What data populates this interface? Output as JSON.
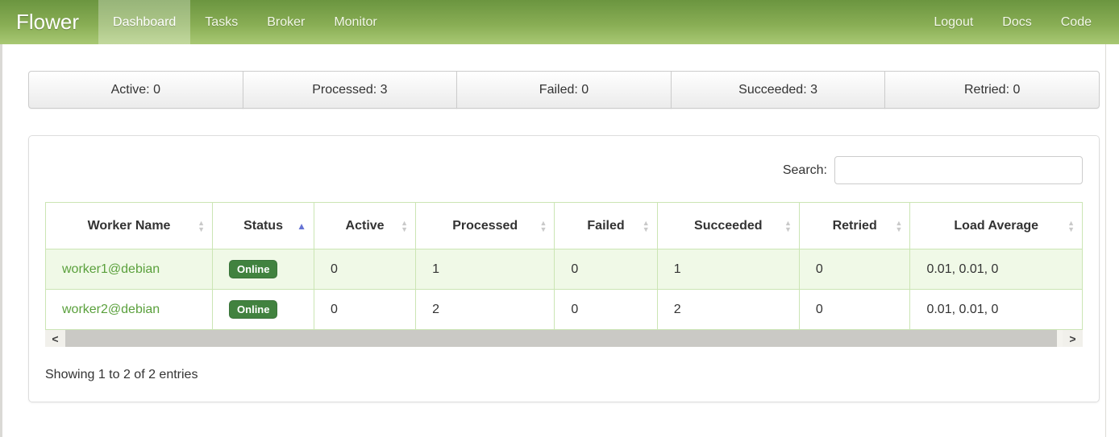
{
  "navbar": {
    "brand": "Flower",
    "items": [
      {
        "label": "Dashboard",
        "active": true
      },
      {
        "label": "Tasks",
        "active": false
      },
      {
        "label": "Broker",
        "active": false
      },
      {
        "label": "Monitor",
        "active": false
      }
    ],
    "right_items": [
      {
        "label": "Logout"
      },
      {
        "label": "Docs"
      },
      {
        "label": "Code"
      }
    ]
  },
  "stats": [
    {
      "text": "Active: 0"
    },
    {
      "text": "Processed: 3"
    },
    {
      "text": "Failed: 0"
    },
    {
      "text": "Succeeded: 3"
    },
    {
      "text": "Retried: 0"
    }
  ],
  "search": {
    "label": "Search:",
    "value": ""
  },
  "table": {
    "columns": [
      {
        "label": "Worker Name",
        "sorted": false
      },
      {
        "label": "Status",
        "sorted": true,
        "direction": "asc"
      },
      {
        "label": "Active",
        "sorted": false
      },
      {
        "label": "Processed",
        "sorted": false
      },
      {
        "label": "Failed",
        "sorted": false
      },
      {
        "label": "Succeeded",
        "sorted": false
      },
      {
        "label": "Retried",
        "sorted": false
      },
      {
        "label": "Load Average",
        "sorted": false
      }
    ],
    "rows": [
      {
        "worker_name": "worker1@debian",
        "status": "Online",
        "active": "0",
        "processed": "1",
        "failed": "0",
        "succeeded": "1",
        "retried": "0",
        "load_average": "0.01, 0.01, 0"
      },
      {
        "worker_name": "worker2@debian",
        "status": "Online",
        "active": "0",
        "processed": "2",
        "failed": "0",
        "succeeded": "2",
        "retried": "0",
        "load_average": "0.01, 0.01, 0"
      }
    ],
    "info": "Showing 1 to 2 of 2 entries"
  },
  "icons": {
    "sort_up": "▲",
    "sort_down": "▼",
    "scroll_left": "<",
    "scroll_right": ">"
  },
  "colors": {
    "navbar_top": "#6b9540",
    "navbar_bottom": "#a8c873",
    "active_tab_overlay": "#b7d287",
    "badge_online": "#41823f",
    "worker_link": "#5aa03c",
    "table_border": "#cbe5b4",
    "row_stripe": "#f0f9e7",
    "sort_active": "#6673d4"
  }
}
